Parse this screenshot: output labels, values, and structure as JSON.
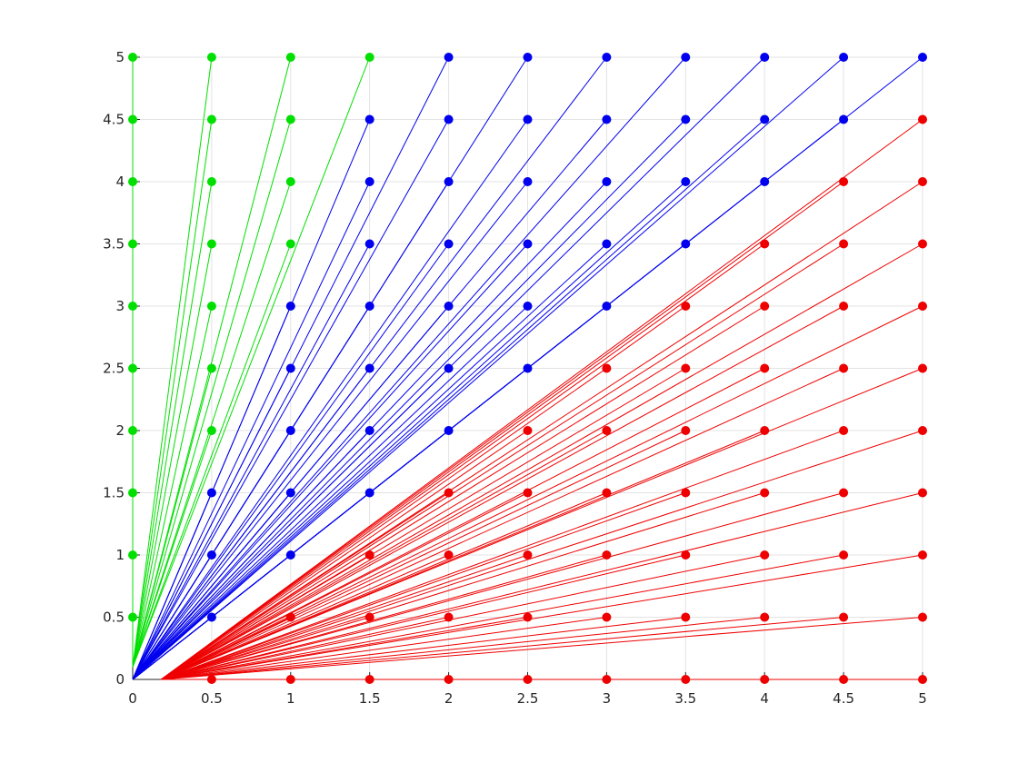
{
  "chart_data": {
    "type": "scatter",
    "xlim": [
      0,
      5
    ],
    "ylim": [
      0,
      5
    ],
    "xticks": [
      0,
      0.5,
      1,
      1.5,
      2,
      2.5,
      3,
      3.5,
      4,
      4.5,
      5
    ],
    "yticks": [
      0,
      0.5,
      1,
      1.5,
      2,
      2.5,
      3,
      3.5,
      4,
      4.5,
      5
    ],
    "grid": true,
    "series": [
      {
        "color": "#00e000",
        "x0": 0,
        "y0": 0.1,
        "x": [
          0,
          0,
          0,
          0,
          0,
          0,
          0,
          0,
          0,
          0,
          0.5,
          0.5,
          0.5,
          0.5,
          0.5,
          0.5,
          0.5,
          1,
          1,
          1,
          1,
          1.5
        ],
        "y": [
          0.5,
          1,
          1.5,
          2,
          2.5,
          3,
          3.5,
          4,
          4.5,
          5,
          2,
          2.5,
          3,
          3.5,
          4,
          4.5,
          5,
          3.5,
          4,
          4.5,
          5,
          5
        ]
      },
      {
        "color": "#0000ee",
        "x0": 0,
        "y0": 0,
        "x": [
          0.5,
          0.5,
          0.5,
          1,
          1,
          1,
          1,
          1,
          1.5,
          1.5,
          1.5,
          1.5,
          1.5,
          1.5,
          1.5,
          2,
          2,
          2,
          2,
          2,
          2,
          2,
          2.5,
          2.5,
          2.5,
          2.5,
          2.5,
          2.5,
          3,
          3,
          3,
          3,
          3,
          3.5,
          3.5,
          3.5,
          3.5,
          4,
          4,
          4,
          4.5,
          4.5,
          5
        ],
        "y": [
          0.5,
          1,
          1.5,
          1,
          1.5,
          2,
          2.5,
          3,
          1.5,
          2,
          2.5,
          3,
          3.5,
          4,
          4.5,
          2,
          2.5,
          3,
          3.5,
          4,
          4.5,
          5,
          2.5,
          3,
          3.5,
          4,
          4.5,
          5,
          3,
          3.5,
          4,
          4.5,
          5,
          3.5,
          4,
          4.5,
          5,
          4,
          4.5,
          5,
          4.5,
          5,
          5
        ]
      },
      {
        "color": "#ee0000",
        "x0": 0.18,
        "y0": 0,
        "x": [
          0.5,
          1,
          1,
          1.5,
          1.5,
          1.5,
          2,
          2,
          2,
          2,
          2.5,
          2.5,
          2.5,
          2.5,
          2.5,
          3,
          3,
          3,
          3,
          3,
          3,
          3.5,
          3.5,
          3.5,
          3.5,
          3.5,
          3.5,
          3.5,
          4,
          4,
          4,
          4,
          4,
          4,
          4,
          4,
          4.5,
          4.5,
          4.5,
          4.5,
          4.5,
          4.5,
          4.5,
          4.5,
          4.5,
          5,
          5,
          5,
          5,
          5,
          5,
          5,
          5,
          5,
          5
        ],
        "y": [
          0,
          0,
          0.5,
          0,
          0.5,
          1,
          0,
          0.5,
          1,
          1.5,
          0,
          0.5,
          1,
          1.5,
          2,
          0,
          0.5,
          1,
          1.5,
          2,
          2.5,
          0,
          0.5,
          1,
          1.5,
          2,
          2.5,
          3,
          0,
          0.5,
          1,
          1.5,
          2,
          2.5,
          3,
          3.5,
          0,
          0.5,
          1,
          1.5,
          2,
          2.5,
          3,
          3.5,
          4,
          0,
          0.5,
          1,
          1.5,
          2,
          2.5,
          3,
          3.5,
          4,
          4.5
        ]
      }
    ]
  }
}
